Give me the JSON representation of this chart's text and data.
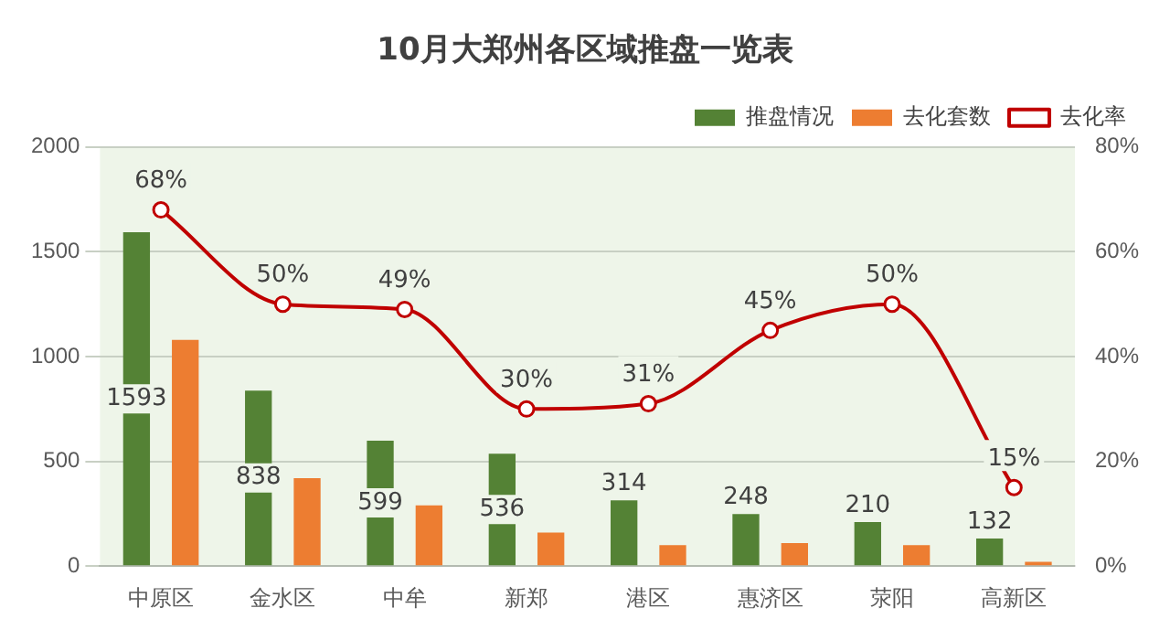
{
  "chart_data": {
    "type": "bar",
    "title": "10月大郑州各区域推盘一览表",
    "categories": [
      "中原区",
      "金水区",
      "中牟",
      "新郑",
      "港区",
      "惠济区",
      "荥阳",
      "高新区"
    ],
    "series": [
      {
        "name": "推盘情况",
        "color": "#548235",
        "values": [
          1593,
          838,
          599,
          536,
          314,
          248,
          210,
          132
        ],
        "value_labels": [
          "1593",
          "838",
          "599",
          "536",
          "314",
          "248",
          "210",
          "132"
        ]
      },
      {
        "name": "去化套数",
        "color": "#ed7d31",
        "values": [
          1080,
          420,
          290,
          160,
          100,
          110,
          100,
          20
        ]
      },
      {
        "name": "去化率",
        "type": "line",
        "axis": "y2",
        "color": "#c00000",
        "marker": "circle",
        "values": [
          68,
          50,
          49,
          30,
          31,
          45,
          50,
          15
        ],
        "value_labels": [
          "68%",
          "50%",
          "49%",
          "30%",
          "31%",
          "45%",
          "50%",
          "15%"
        ]
      }
    ],
    "ylim": [
      0,
      2000
    ],
    "yticks": [
      0,
      500,
      1000,
      1500,
      2000
    ],
    "y2lim": [
      0,
      80
    ],
    "y2ticks": [
      {
        "value": 0,
        "label": "0%"
      },
      {
        "value": 20,
        "label": "20%"
      },
      {
        "value": 40,
        "label": "40%"
      },
      {
        "value": 60,
        "label": "60%"
      },
      {
        "value": 80,
        "label": "80%"
      }
    ],
    "grid": "y",
    "legend": "top right"
  }
}
